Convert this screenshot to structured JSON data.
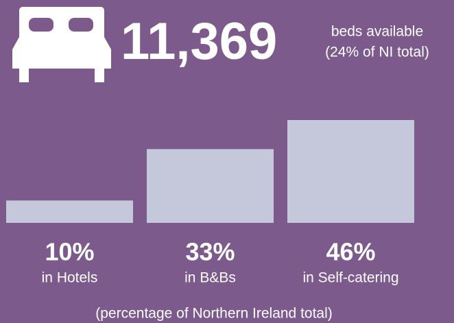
{
  "chart_data": {
    "type": "bar",
    "headline": "11,369",
    "headline_text": [
      "beds available",
      "(24% of NI total)"
    ],
    "categories": [
      "in Hotels",
      "in B&Bs",
      "in Self-catering"
    ],
    "values": [
      10,
      33,
      46
    ],
    "value_labels": [
      "10%",
      "33%",
      "46%"
    ],
    "color": "#c5c7da",
    "note": "(percentage of Northern Ireland total)"
  }
}
